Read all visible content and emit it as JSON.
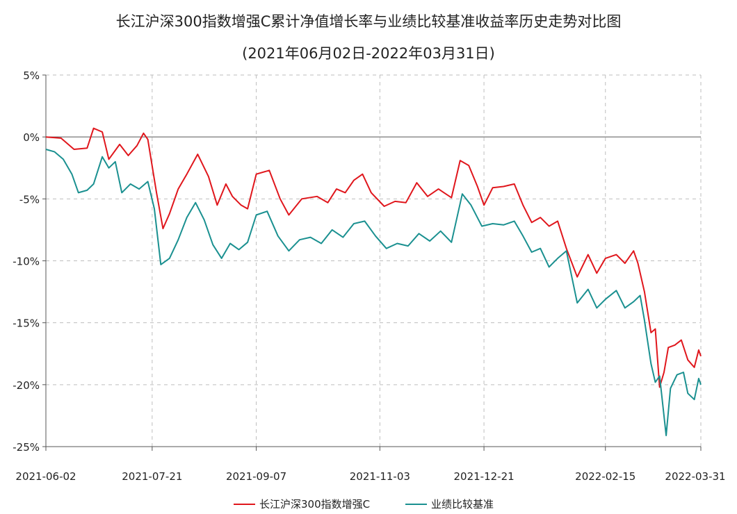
{
  "chart_data": {
    "type": "line",
    "title": "长江沪深300指数增强C累计净值增长率与业绩比较基准收益率历史走势对比图",
    "subtitle": "(2021年06月02日-2022年03月31日)",
    "xlabel": "",
    "ylabel": "",
    "x_ticks": [
      "2021-06-02",
      "2021-07-21",
      "2021-09-07",
      "2021-11-03",
      "2021-12-21",
      "2022-02-15",
      "2022-03-31"
    ],
    "y_ticks": [
      "5%",
      "0%",
      "-5%",
      "-10%",
      "-15%",
      "-20%",
      "-25%"
    ],
    "ylim": [
      -25,
      5
    ],
    "grid": true,
    "legend_position": "bottom",
    "series": [
      {
        "name": "长江沪深300指数增强C",
        "color": "#e0161c",
        "points": [
          [
            "2021-06-02",
            0.0
          ],
          [
            "2021-06-09",
            -0.1
          ],
          [
            "2021-06-15",
            -1.0
          ],
          [
            "2021-06-21",
            -0.9
          ],
          [
            "2021-06-24",
            0.7
          ],
          [
            "2021-06-28",
            0.4
          ],
          [
            "2021-07-01",
            -1.8
          ],
          [
            "2021-07-06",
            -0.6
          ],
          [
            "2021-07-10",
            -1.5
          ],
          [
            "2021-07-14",
            -0.7
          ],
          [
            "2021-07-17",
            0.3
          ],
          [
            "2021-07-19",
            -0.2
          ],
          [
            "2021-07-23",
            -4.5
          ],
          [
            "2021-07-26",
            -7.4
          ],
          [
            "2021-07-29",
            -6.2
          ],
          [
            "2021-08-02",
            -4.2
          ],
          [
            "2021-08-06",
            -3.0
          ],
          [
            "2021-08-11",
            -1.4
          ],
          [
            "2021-08-16",
            -3.2
          ],
          [
            "2021-08-20",
            -5.5
          ],
          [
            "2021-08-24",
            -3.8
          ],
          [
            "2021-08-27",
            -4.8
          ],
          [
            "2021-08-31",
            -5.5
          ],
          [
            "2021-09-03",
            -5.8
          ],
          [
            "2021-09-07",
            -3.0
          ],
          [
            "2021-09-13",
            -2.7
          ],
          [
            "2021-09-18",
            -5.0
          ],
          [
            "2021-09-22",
            -6.3
          ],
          [
            "2021-09-28",
            -5.0
          ],
          [
            "2021-10-05",
            -4.8
          ],
          [
            "2021-10-10",
            -5.3
          ],
          [
            "2021-10-14",
            -4.2
          ],
          [
            "2021-10-18",
            -4.5
          ],
          [
            "2021-10-22",
            -3.5
          ],
          [
            "2021-10-26",
            -3.0
          ],
          [
            "2021-10-30",
            -4.5
          ],
          [
            "2021-11-05",
            -5.6
          ],
          [
            "2021-11-10",
            -5.2
          ],
          [
            "2021-11-15",
            -5.3
          ],
          [
            "2021-11-20",
            -3.7
          ],
          [
            "2021-11-25",
            -4.8
          ],
          [
            "2021-11-30",
            -4.2
          ],
          [
            "2021-12-06",
            -4.9
          ],
          [
            "2021-12-10",
            -1.9
          ],
          [
            "2021-12-14",
            -2.3
          ],
          [
            "2021-12-18",
            -4.0
          ],
          [
            "2021-12-21",
            -5.5
          ],
          [
            "2021-12-25",
            -4.1
          ],
          [
            "2021-12-30",
            -4.0
          ],
          [
            "2022-01-04",
            -3.8
          ],
          [
            "2022-01-08",
            -5.5
          ],
          [
            "2022-01-12",
            -6.9
          ],
          [
            "2022-01-16",
            -6.5
          ],
          [
            "2022-01-20",
            -7.2
          ],
          [
            "2022-01-24",
            -6.8
          ],
          [
            "2022-01-28",
            -9.0
          ],
          [
            "2022-02-02",
            -11.3
          ],
          [
            "2022-02-07",
            -9.5
          ],
          [
            "2022-02-11",
            -11.0
          ],
          [
            "2022-02-15",
            -9.8
          ],
          [
            "2022-02-20",
            -9.5
          ],
          [
            "2022-02-24",
            -10.2
          ],
          [
            "2022-02-28",
            -9.2
          ],
          [
            "2022-03-02",
            -10.2
          ],
          [
            "2022-03-05",
            -12.5
          ],
          [
            "2022-03-08",
            -15.8
          ],
          [
            "2022-03-10",
            -15.5
          ],
          [
            "2022-03-12",
            -20.2
          ],
          [
            "2022-03-14",
            -19.0
          ],
          [
            "2022-03-16",
            -17.0
          ],
          [
            "2022-03-19",
            -16.8
          ],
          [
            "2022-03-22",
            -16.4
          ],
          [
            "2022-03-25",
            -18.0
          ],
          [
            "2022-03-28",
            -18.6
          ],
          [
            "2022-03-30",
            -17.2
          ],
          [
            "2022-03-31",
            -17.7
          ]
        ]
      },
      {
        "name": "业绩比较基准",
        "color": "#1a9090",
        "points": [
          [
            "2021-06-02",
            -1.0
          ],
          [
            "2021-06-06",
            -1.2
          ],
          [
            "2021-06-10",
            -1.8
          ],
          [
            "2021-06-14",
            -3.0
          ],
          [
            "2021-06-17",
            -4.5
          ],
          [
            "2021-06-21",
            -4.3
          ],
          [
            "2021-06-24",
            -3.8
          ],
          [
            "2021-06-28",
            -1.6
          ],
          [
            "2021-07-01",
            -2.5
          ],
          [
            "2021-07-04",
            -2.0
          ],
          [
            "2021-07-07",
            -4.5
          ],
          [
            "2021-07-11",
            -3.8
          ],
          [
            "2021-07-15",
            -4.2
          ],
          [
            "2021-07-19",
            -3.6
          ],
          [
            "2021-07-22",
            -5.8
          ],
          [
            "2021-07-25",
            -10.3
          ],
          [
            "2021-07-29",
            -9.8
          ],
          [
            "2021-08-02",
            -8.3
          ],
          [
            "2021-08-06",
            -6.5
          ],
          [
            "2021-08-10",
            -5.3
          ],
          [
            "2021-08-14",
            -6.7
          ],
          [
            "2021-08-18",
            -8.7
          ],
          [
            "2021-08-22",
            -9.8
          ],
          [
            "2021-08-26",
            -8.6
          ],
          [
            "2021-08-30",
            -9.1
          ],
          [
            "2021-09-03",
            -8.5
          ],
          [
            "2021-09-07",
            -6.3
          ],
          [
            "2021-09-12",
            -6.0
          ],
          [
            "2021-09-17",
            -8.0
          ],
          [
            "2021-09-22",
            -9.2
          ],
          [
            "2021-09-27",
            -8.3
          ],
          [
            "2021-10-02",
            -8.1
          ],
          [
            "2021-10-07",
            -8.6
          ],
          [
            "2021-10-12",
            -7.5
          ],
          [
            "2021-10-17",
            -8.1
          ],
          [
            "2021-10-22",
            -7.0
          ],
          [
            "2021-10-27",
            -6.8
          ],
          [
            "2021-11-01",
            -8.0
          ],
          [
            "2021-11-06",
            -9.0
          ],
          [
            "2021-11-11",
            -8.6
          ],
          [
            "2021-11-16",
            -8.8
          ],
          [
            "2021-11-21",
            -7.8
          ],
          [
            "2021-11-26",
            -8.4
          ],
          [
            "2021-12-01",
            -7.6
          ],
          [
            "2021-12-06",
            -8.5
          ],
          [
            "2021-12-11",
            -4.6
          ],
          [
            "2021-12-15",
            -5.5
          ],
          [
            "2021-12-20",
            -7.2
          ],
          [
            "2021-12-25",
            -7.0
          ],
          [
            "2021-12-30",
            -7.1
          ],
          [
            "2022-01-04",
            -6.8
          ],
          [
            "2022-01-08",
            -8.0
          ],
          [
            "2022-01-12",
            -9.3
          ],
          [
            "2022-01-16",
            -9.0
          ],
          [
            "2022-01-20",
            -10.5
          ],
          [
            "2022-01-24",
            -9.8
          ],
          [
            "2022-01-28",
            -9.2
          ],
          [
            "2022-02-02",
            -13.4
          ],
          [
            "2022-02-07",
            -12.3
          ],
          [
            "2022-02-11",
            -13.8
          ],
          [
            "2022-02-15",
            -13.1
          ],
          [
            "2022-02-20",
            -12.4
          ],
          [
            "2022-02-24",
            -13.8
          ],
          [
            "2022-02-28",
            -13.3
          ],
          [
            "2022-03-03",
            -12.8
          ],
          [
            "2022-03-05",
            -14.8
          ],
          [
            "2022-03-08",
            -18.3
          ],
          [
            "2022-03-10",
            -19.8
          ],
          [
            "2022-03-12",
            -19.3
          ],
          [
            "2022-03-15",
            -24.1
          ],
          [
            "2022-03-17",
            -20.3
          ],
          [
            "2022-03-20",
            -19.2
          ],
          [
            "2022-03-23",
            -19.0
          ],
          [
            "2022-03-25",
            -20.7
          ],
          [
            "2022-03-28",
            -21.2
          ],
          [
            "2022-03-30",
            -19.5
          ],
          [
            "2022-03-31",
            -20.0
          ]
        ]
      }
    ]
  }
}
